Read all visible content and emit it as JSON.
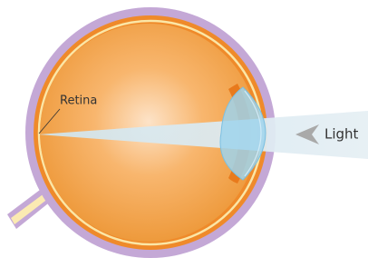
{
  "labels": {
    "retina": "Retina",
    "light": "Light"
  }
}
